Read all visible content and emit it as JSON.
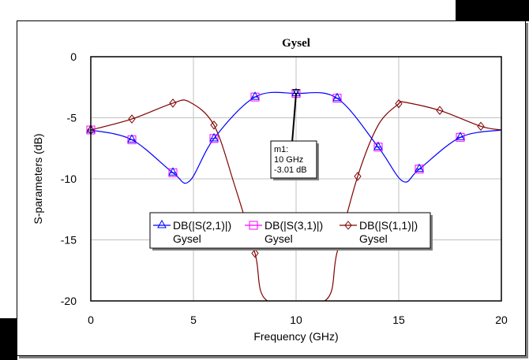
{
  "chart_data": {
    "type": "line",
    "title": "Gysel",
    "xlabel": "Frequency (GHz)",
    "ylabel": "S-parameters (dB)",
    "xlim": [
      0,
      20
    ],
    "ylim": [
      -20,
      0
    ],
    "x_ticks": [
      "0",
      "5",
      "10",
      "15",
      "20"
    ],
    "y_ticks": [
      "0",
      "-5",
      "-10",
      "-15",
      "-20"
    ],
    "grid": true,
    "legend_position": "inside-lower-center",
    "series": [
      {
        "name": "DB(|S(2,1)|)",
        "sub": "Gysel",
        "color": "#0000ff",
        "marker": "triangle",
        "x": [
          0,
          2,
          4,
          4.8,
          6,
          8,
          10,
          12,
          14,
          15.2,
          16,
          18,
          20
        ],
        "y": [
          -6.0,
          -6.8,
          -9.5,
          -10.2,
          -6.7,
          -3.3,
          -3.01,
          -3.4,
          -7.4,
          -10.2,
          -9.2,
          -6.6,
          -6.0
        ]
      },
      {
        "name": "DB(|S(3,1)|)",
        "sub": "Gysel",
        "color": "#ff00ff",
        "marker": "square",
        "x": [
          0,
          2,
          4,
          4.8,
          6,
          8,
          10,
          12,
          14,
          15.2,
          16,
          18,
          20
        ],
        "y": [
          -6.0,
          -6.8,
          -9.5,
          -10.2,
          -6.7,
          -3.3,
          -3.01,
          -3.4,
          -7.4,
          -10.2,
          -9.2,
          -6.6,
          -6.0
        ]
      },
      {
        "name": "DB(|S(1,1)|)",
        "sub": "Gysel",
        "color": "#800000",
        "marker": "diamond",
        "x": [
          0,
          2,
          4,
          4.8,
          6,
          7,
          8,
          8.6,
          11.4,
          12,
          13,
          14,
          15,
          15.2,
          17,
          19,
          20
        ],
        "y": [
          -6.0,
          -5.1,
          -3.8,
          -3.7,
          -5.6,
          -10.5,
          -16.1,
          -20,
          -20,
          -16,
          -9.8,
          -5.6,
          -3.85,
          -3.7,
          -4.4,
          -5.7,
          -6.0
        ]
      }
    ],
    "annotations": [
      {
        "label": "m1:",
        "line2": "10 GHz",
        "line3": "-3.01 dB",
        "x": 10,
        "y": -3.01
      }
    ]
  }
}
